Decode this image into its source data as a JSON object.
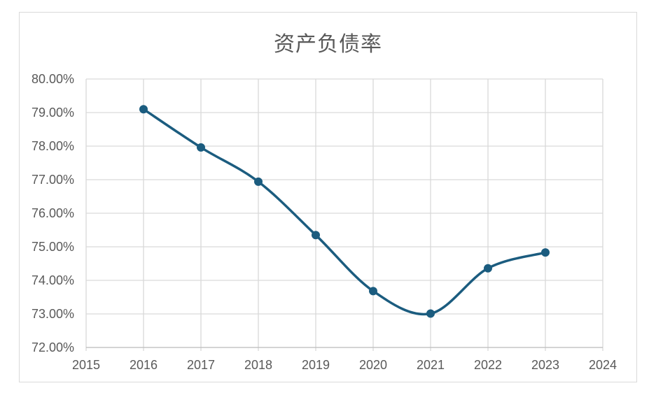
{
  "chart_data": {
    "type": "line",
    "title": "资产负债率",
    "xlabel": "",
    "ylabel": "",
    "x": [
      2016,
      2017,
      2018,
      2019,
      2020,
      2021,
      2022,
      2023
    ],
    "series": [
      {
        "values": [
          79.1,
          77.96,
          76.94,
          75.35,
          73.68,
          73.01,
          74.36,
          74.83
        ]
      }
    ],
    "xlim": [
      2015,
      2024
    ],
    "ylim": [
      72,
      80
    ],
    "xticks": [
      "2015",
      "2016",
      "2017",
      "2018",
      "2019",
      "2020",
      "2021",
      "2022",
      "2023",
      "2024"
    ],
    "yticks": [
      "72.00%",
      "73.00%",
      "74.00%",
      "75.00%",
      "76.00%",
      "77.00%",
      "78.00%",
      "79.00%",
      "80.00%"
    ],
    "grid": true,
    "smooth": true,
    "legend": "none",
    "colors": {
      "line": "#1b5c7f",
      "grid": "#d9d9d9",
      "text": "#595959"
    }
  }
}
